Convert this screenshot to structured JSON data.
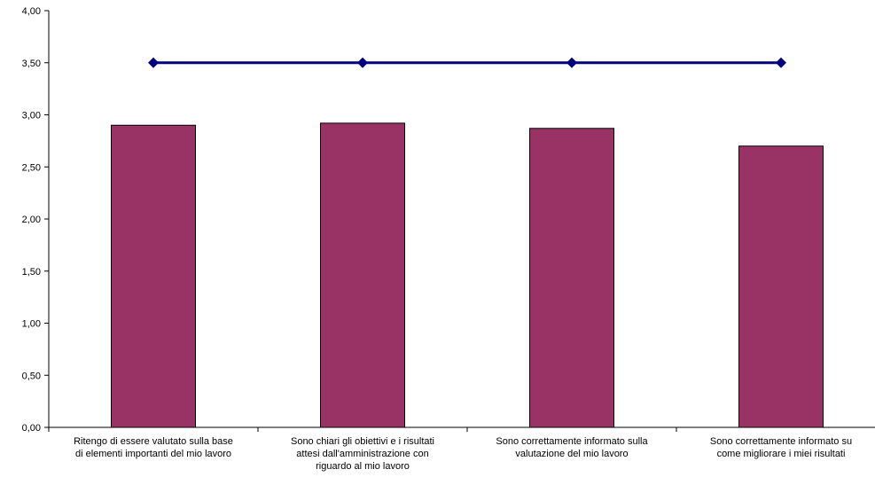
{
  "chart_data": {
    "type": "bar",
    "categories": [
      [
        "Ritengo di essere valutato sulla base",
        "di elementi importanti del mio lavoro"
      ],
      [
        "Sono chiari gli obiettivi e i risultati",
        "attesi dall'amministrazione con",
        "riguardo al mio lavoro"
      ],
      [
        "Sono correttamente informato sulla",
        "valutazione del mio lavoro"
      ],
      [
        "Sono correttamente informato su",
        "come migliorare i miei risultati"
      ]
    ],
    "series": [
      {
        "type": "bar",
        "values": [
          2.9,
          2.92,
          2.87,
          2.7
        ],
        "color": "#993366"
      },
      {
        "type": "line",
        "values": [
          3.5,
          3.5,
          3.5,
          3.5
        ],
        "color": "#000080"
      }
    ],
    "ylim": [
      0,
      4
    ],
    "yticks": [
      "0,00",
      "0,50",
      "1,00",
      "1,50",
      "2,00",
      "2,50",
      "3,00",
      "3,50",
      "4,00"
    ],
    "title": "",
    "xlabel": "",
    "ylabel": "",
    "grid": false,
    "legend": "none"
  }
}
